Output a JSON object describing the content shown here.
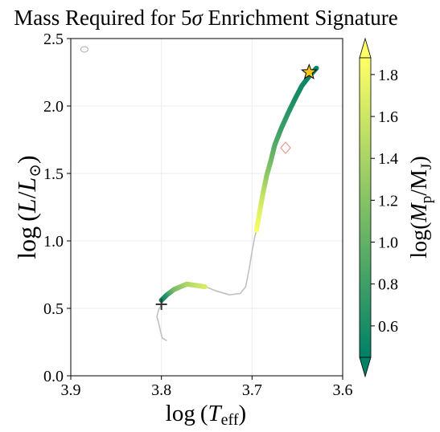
{
  "chart_data": {
    "type": "scatter",
    "title_text": "Mass Required for 5",
    "title_sigma": "σ",
    "title_rest": " Enrichment Signature",
    "xlabel_log": "log",
    "xlabel_T": "T",
    "xlabel_sub": "eff",
    "ylabel_log": "log",
    "ylabel_L": "L",
    "ylabel_Lsun": "L",
    "ylabel_sun": "⊙",
    "xlim": [
      3.9,
      3.6
    ],
    "ylim": [
      0.0,
      2.5
    ],
    "x_ticks": [
      "3.9",
      "3.8",
      "3.7",
      "3.6"
    ],
    "x_tick_values": [
      3.9,
      3.8,
      3.7,
      3.6
    ],
    "y_ticks": [
      "0.0",
      "0.5",
      "1.0",
      "1.5",
      "2.0",
      "2.5"
    ],
    "y_tick_values": [
      0.0,
      0.5,
      1.0,
      1.5,
      2.0,
      2.5
    ],
    "grid": true,
    "track_color": "#c0c0c0",
    "evolutionary_track": [
      [
        3.794,
        0.26
      ],
      [
        3.799,
        0.28
      ],
      [
        3.801,
        0.33
      ],
      [
        3.803,
        0.39
      ],
      [
        3.805,
        0.44
      ],
      [
        3.803,
        0.49
      ],
      [
        3.8,
        0.53
      ],
      [
        3.797,
        0.57
      ],
      [
        3.79,
        0.62
      ],
      [
        3.78,
        0.66
      ],
      [
        3.77,
        0.68
      ],
      [
        3.755,
        0.67
      ],
      [
        3.74,
        0.63
      ],
      [
        3.725,
        0.6
      ],
      [
        3.713,
        0.61
      ],
      [
        3.707,
        0.66
      ],
      [
        3.703,
        0.8
      ],
      [
        3.7,
        0.92
      ],
      [
        3.697,
        1.03
      ],
      [
        3.695,
        1.08
      ]
    ],
    "colored_points": [
      [
        3.8,
        0.56,
        0.5
      ],
      [
        3.797,
        0.58,
        0.55
      ],
      [
        3.794,
        0.6,
        0.65
      ],
      [
        3.79,
        0.62,
        0.9
      ],
      [
        3.786,
        0.64,
        1.1
      ],
      [
        3.772,
        0.68,
        1.4
      ],
      [
        3.752,
        0.66,
        1.65
      ],
      [
        3.695,
        1.08,
        1.85
      ],
      [
        3.692,
        1.2,
        1.75
      ],
      [
        3.688,
        1.35,
        1.55
      ],
      [
        3.684,
        1.48,
        1.3
      ],
      [
        3.679,
        1.6,
        1.1
      ],
      [
        3.675,
        1.71,
        0.95
      ],
      [
        3.668,
        1.83,
        0.8
      ],
      [
        3.66,
        1.95,
        0.7
      ],
      [
        3.652,
        2.06,
        0.6
      ],
      [
        3.645,
        2.15,
        0.55
      ],
      [
        3.637,
        2.22,
        0.5
      ],
      [
        3.629,
        2.28,
        0.48
      ]
    ],
    "markers": {
      "start_cross": [
        3.8,
        0.53
      ],
      "star": [
        3.637,
        2.25
      ],
      "diamond": [
        3.663,
        1.69
      ],
      "open_circle": [
        3.885,
        2.42
      ]
    },
    "colorbar": {
      "label_log": "log",
      "label_M": "M",
      "label_p": "p",
      "label_MJ": "M",
      "label_J": "J",
      "min": 0.45,
      "max": 1.88,
      "ticks": [
        "0.6",
        "0.8",
        "1.0",
        "1.2",
        "1.4",
        "1.6",
        "1.8"
      ],
      "tick_values": [
        0.6,
        0.8,
        1.0,
        1.2,
        1.4,
        1.6,
        1.8
      ],
      "extend": "both",
      "colormap": "summer"
    }
  }
}
